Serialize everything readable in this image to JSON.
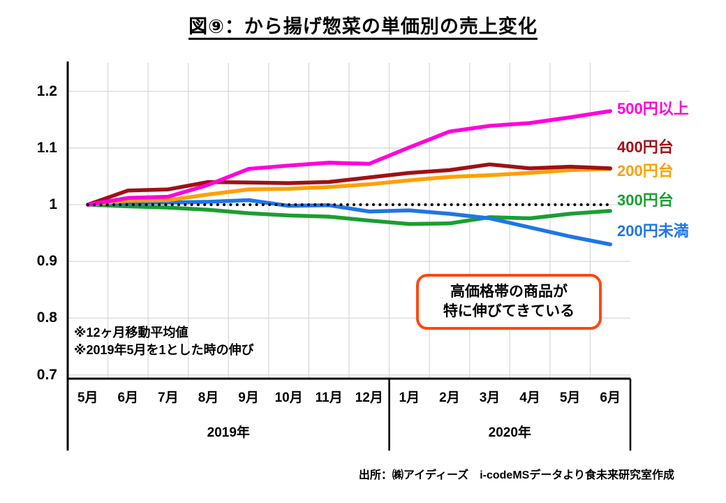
{
  "title": "図⑨：から揚げ惣菜の単価別の売上変化",
  "notes": {
    "line1": "※12ヶ月移動平均値",
    "line2": "※2019年5月を1とした時の伸び"
  },
  "annotation": {
    "line1": "高価格帯の商品が",
    "line2": "特に伸びてきている",
    "border_color": "#FF4713"
  },
  "source": "出所：㈱アイディーズ　i-codeMSデータより食未来研究室作成",
  "colors": {
    "grid": "#D9D9D9",
    "axis": "#000000",
    "baseline_dots": "#000000"
  },
  "chart_data": {
    "type": "line",
    "x": [
      "5月",
      "6月",
      "7月",
      "8月",
      "9月",
      "10月",
      "11月",
      "12月",
      "1月",
      "2月",
      "3月",
      "4月",
      "5月",
      "6月"
    ],
    "x_groups": [
      {
        "label": "2019年",
        "span": 8
      },
      {
        "label": "2020年",
        "span": 6
      }
    ],
    "yticks": [
      "1.2",
      "1.1",
      "1",
      "0.9",
      "0.8",
      "0.7"
    ],
    "ylim": [
      0.69,
      1.25
    ],
    "grid": true,
    "baseline": {
      "value": 1,
      "style": "dotted"
    },
    "legend_position": "right-of-plot",
    "series": [
      {
        "name": "500円以上",
        "color": "#FF00DC",
        "values": [
          1.0,
          1.012,
          1.014,
          1.035,
          1.063,
          1.069,
          1.074,
          1.072,
          1.101,
          1.129,
          1.139,
          1.144,
          1.154,
          1.165
        ]
      },
      {
        "name": "400円台",
        "color": "#A01016",
        "values": [
          1.0,
          1.025,
          1.027,
          1.04,
          1.039,
          1.038,
          1.04,
          1.048,
          1.056,
          1.061,
          1.071,
          1.064,
          1.067,
          1.064
        ]
      },
      {
        "name": "200円台",
        "color": "#FFA000",
        "values": [
          1.0,
          1.007,
          1.008,
          1.018,
          1.027,
          1.028,
          1.031,
          1.036,
          1.043,
          1.049,
          1.052,
          1.056,
          1.061,
          1.063
        ]
      },
      {
        "name": "300円台",
        "color": "#1B9E32",
        "values": [
          1.0,
          0.997,
          0.995,
          0.991,
          0.985,
          0.981,
          0.979,
          0.972,
          0.966,
          0.967,
          0.978,
          0.976,
          0.984,
          0.989
        ]
      },
      {
        "name": "200円未満",
        "color": "#1E76E6",
        "values": [
          1.0,
          1.003,
          1.004,
          1.005,
          1.008,
          0.998,
          0.999,
          0.988,
          0.99,
          0.984,
          0.976,
          0.96,
          0.944,
          0.93
        ]
      }
    ]
  }
}
